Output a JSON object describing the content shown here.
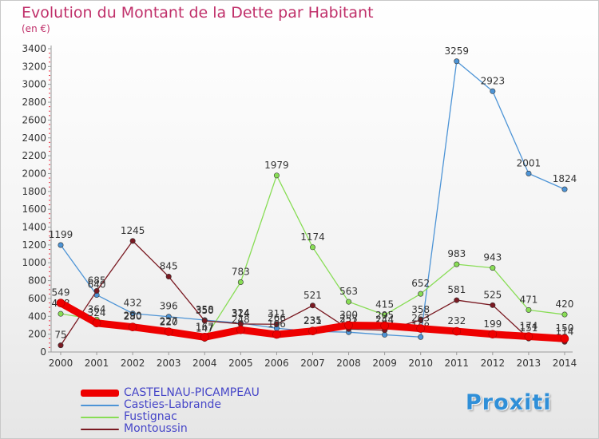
{
  "header": {
    "title": "Evolution du Montant de la Dette par Habitant",
    "unit": "(en €)"
  },
  "brand": {
    "logo_text": "Proxiti"
  },
  "chart_data": {
    "type": "line",
    "title": "Evolution du Montant de la Dette par Habitant",
    "subtitle": "(en €)",
    "categories": [
      "2000",
      "2001",
      "2002",
      "2003",
      "2004",
      "2005",
      "2006",
      "2007",
      "2008",
      "2009",
      "2010",
      "2011",
      "2012",
      "2013",
      "2014"
    ],
    "ylim": [
      0,
      3400
    ],
    "yticks": [
      0,
      200,
      400,
      600,
      800,
      1000,
      1200,
      1400,
      1600,
      1800,
      2000,
      2200,
      2400,
      2600,
      2800,
      3000,
      3200,
      3400
    ],
    "grid": false,
    "legend_position": "bottom-left",
    "series": [
      {
        "name": "CASTELNAU-PICAMPEAU",
        "color": "#ee0000",
        "values": [
          549,
          324,
          280,
          227,
          167,
          248,
          196,
          235,
          300,
          295,
          263,
          232,
          199,
          174,
          150
        ],
        "labels": [
          "549",
          "324",
          "280",
          "227",
          "167",
          "248",
          "196",
          "235",
          "300",
          "295",
          "263",
          "232",
          "199",
          "174",
          "150"
        ]
      },
      {
        "name": "Casties-Labrande",
        "color": "#4d94d6",
        "values": [
          1199,
          640,
          432,
          396,
          358,
          324,
          266,
          231,
          222,
          193,
          168,
          3259,
          2923,
          2001,
          1824
        ],
        "labels": [
          "1199",
          "640",
          "432",
          "396",
          "358",
          "324",
          "266",
          "231",
          "222",
          "193",
          "168",
          "3259",
          "2923",
          "2001",
          "1824"
        ]
      },
      {
        "name": "Fustignac",
        "color": "#88dd55",
        "values": [
          428,
          364,
          290,
          220,
          147,
          783,
          1979,
          1174,
          563,
          415,
          652,
          983,
          943,
          471,
          420
        ],
        "labels": [
          "428",
          "364",
          "290",
          "220",
          "147",
          "783",
          "1979",
          "1174",
          "563",
          "415",
          "652",
          "983",
          "943",
          "471",
          "420"
        ]
      },
      {
        "name": "Montoussin",
        "color": "#7a1a22",
        "values": [
          75,
          685,
          1245,
          845,
          350,
          314,
          311,
          521,
          257,
          244,
          358,
          581,
          525,
          151,
          114
        ],
        "labels": [
          "75",
          "685",
          "1245",
          "845",
          "350",
          "314",
          "311",
          "521",
          "257",
          "244",
          "358",
          "581",
          "525",
          "151",
          "114"
        ]
      }
    ]
  }
}
